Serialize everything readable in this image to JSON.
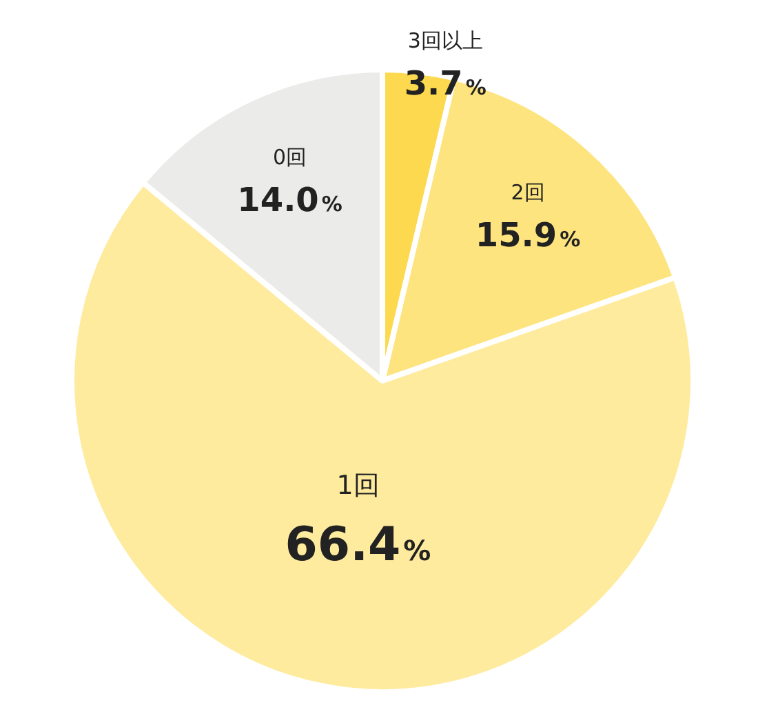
{
  "chart_data": {
    "type": "pie",
    "categories": [
      "3回以上",
      "2回",
      "1回",
      "0回"
    ],
    "values": [
      3.7,
      15.9,
      66.4,
      14.0
    ],
    "colors": [
      "#fcd94f",
      "#fde47e",
      "#feeb9e",
      "#ebebea"
    ],
    "value_labels": [
      "3.7%",
      "15.9%",
      "66.4%",
      "14.0%"
    ],
    "legend": false
  }
}
